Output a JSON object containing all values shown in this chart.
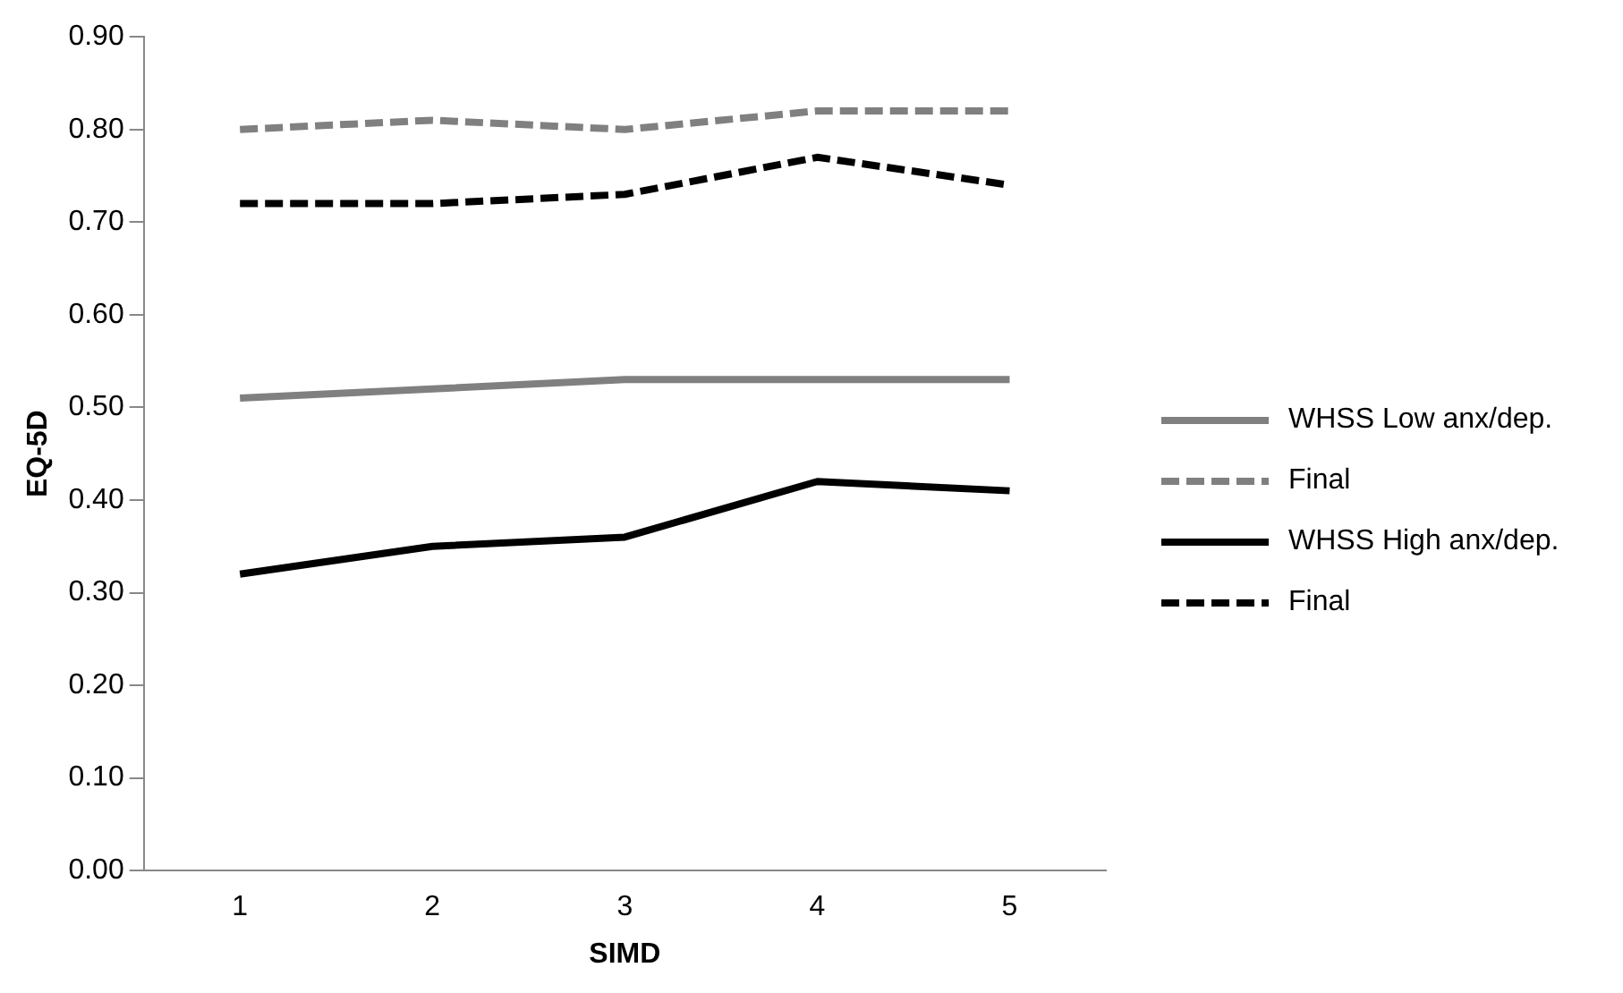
{
  "chart_data": {
    "type": "line",
    "xlabel": "SIMD",
    "ylabel": "EQ-5D",
    "categories": [
      "1",
      "2",
      "3",
      "4",
      "5"
    ],
    "series": [
      {
        "name": "WHSS Low anx/dep.",
        "color": "#808080",
        "line_style": "solid",
        "values": [
          0.51,
          0.52,
          0.53,
          0.53,
          0.53
        ]
      },
      {
        "name": "Final",
        "color": "#808080",
        "line_style": "dashed",
        "values": [
          0.8,
          0.81,
          0.8,
          0.82,
          0.82
        ]
      },
      {
        "name": "WHSS High anx/dep.",
        "color": "#000000",
        "line_style": "solid",
        "values": [
          0.32,
          0.35,
          0.36,
          0.42,
          0.41
        ]
      },
      {
        "name": "Final",
        "color": "#000000",
        "line_style": "dashed",
        "values": [
          0.72,
          0.72,
          0.73,
          0.77,
          0.74
        ]
      }
    ],
    "ylim": [
      0,
      0.9
    ],
    "yticks": [
      {
        "value": 0,
        "label": "0.00"
      },
      {
        "value": 0.1,
        "label": "0.10"
      },
      {
        "value": 0.2,
        "label": "0.20"
      },
      {
        "value": 0.3,
        "label": "0.30"
      },
      {
        "value": 0.4,
        "label": "0.40"
      },
      {
        "value": 0.5,
        "label": "0.50"
      },
      {
        "value": 0.6,
        "label": "0.60"
      },
      {
        "value": 0.7,
        "label": "0.70"
      },
      {
        "value": 0.8,
        "label": "0.80"
      },
      {
        "value": 0.9,
        "label": "0.90"
      }
    ],
    "grid": false,
    "legend": "right",
    "marker": "none"
  }
}
